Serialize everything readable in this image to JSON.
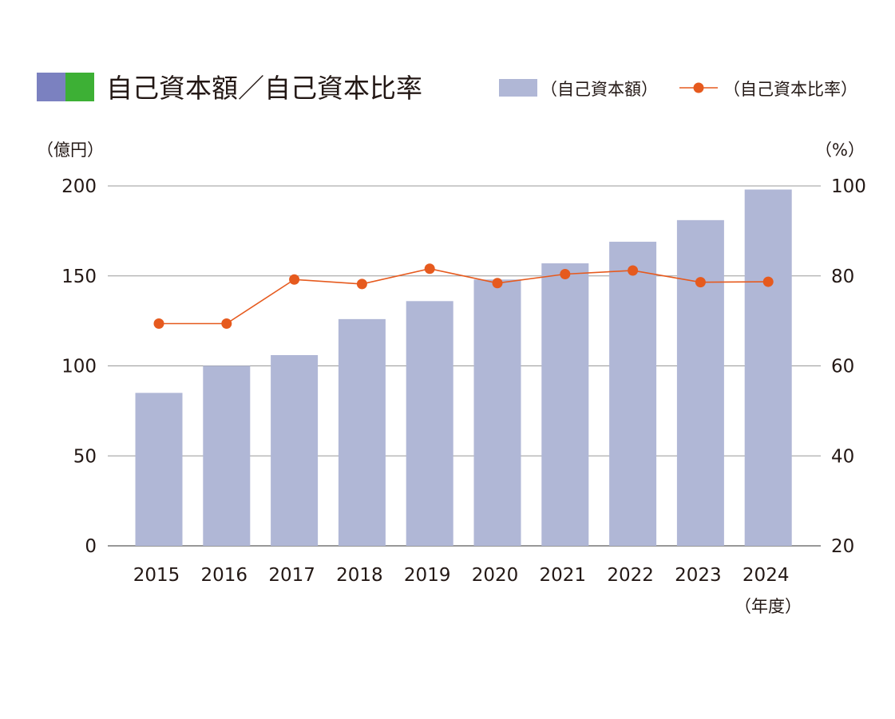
{
  "chart_data": {
    "type": "bar",
    "title": "自己資本額／自己資本比率",
    "title_marker_colors": [
      "#7b81c0",
      "#3db035"
    ],
    "left_unit": "（億円）",
    "right_unit": "（%）",
    "x_unit": "（年度）",
    "legend": {
      "placement": "top-right",
      "bar_label": "（自己資本額）",
      "line_label": "（自己資本比率）"
    },
    "categories": [
      "2015",
      "2016",
      "2017",
      "2018",
      "2019",
      "2020",
      "2021",
      "2022",
      "2023",
      "2024"
    ],
    "series": [
      {
        "name": "（自己資本額）",
        "type": "bar",
        "axis": "left",
        "color": "#b0b7d6",
        "values": [
          85,
          100,
          106,
          126,
          136,
          148,
          157,
          169,
          181,
          198
        ]
      },
      {
        "name": "（自己資本比率）",
        "type": "line",
        "axis": "right",
        "color": "#e65a1e",
        "values": [
          69.4,
          69.4,
          79.2,
          78.2,
          81.6,
          78.4,
          80.4,
          81.2,
          78.6,
          78.7
        ]
      }
    ],
    "y_left": {
      "range": [
        0,
        200
      ],
      "ticks": [
        0,
        50,
        100,
        150,
        200
      ]
    },
    "y_right": {
      "range": [
        20,
        100
      ],
      "ticks": [
        20,
        40,
        60,
        80,
        100
      ]
    },
    "grid": true
  }
}
